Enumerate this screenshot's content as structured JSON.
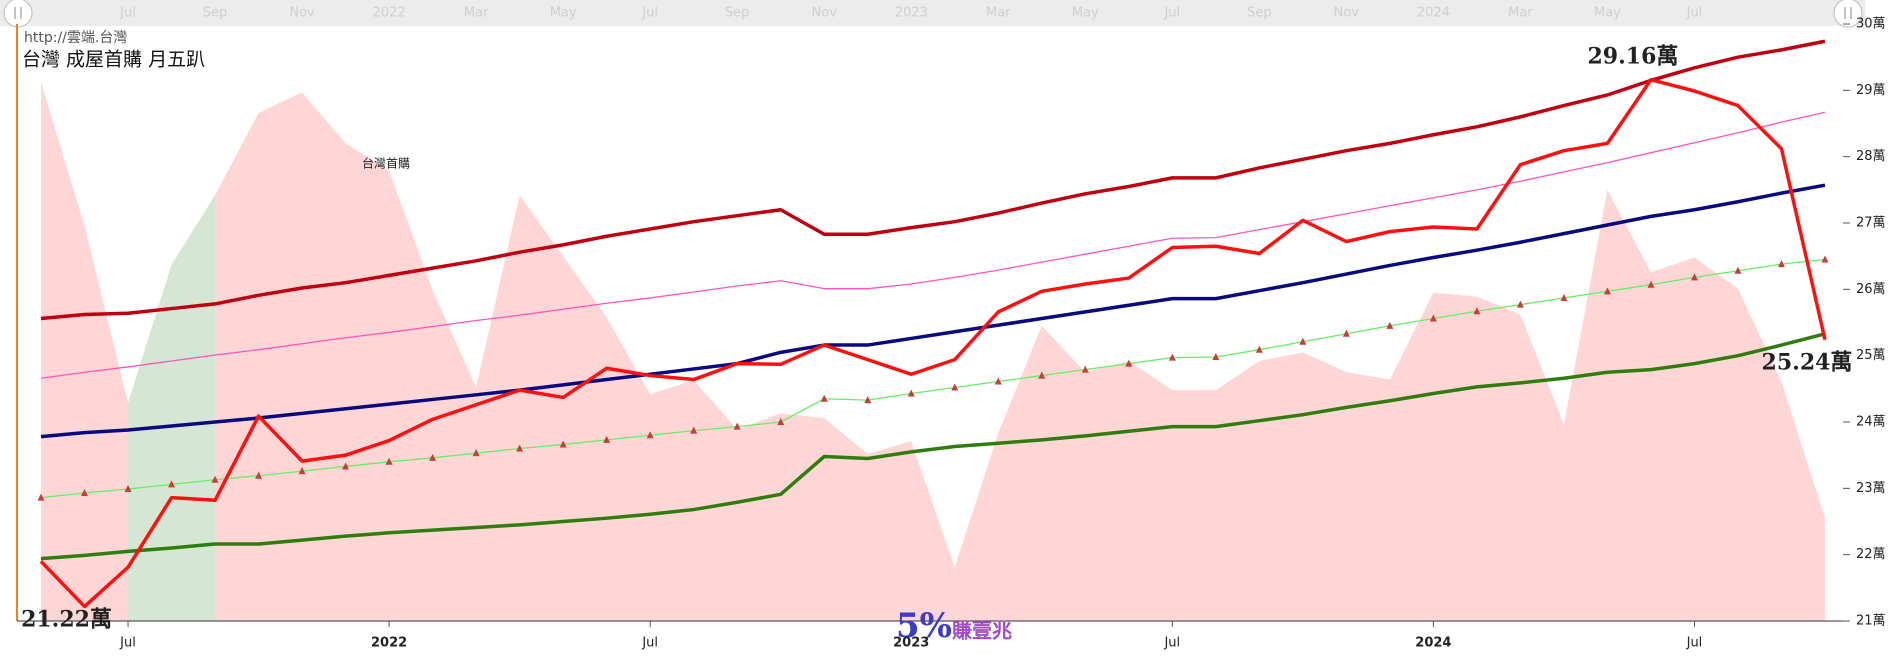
{
  "chart_data": {
    "type": "line",
    "url": "http://雲端.台灣",
    "title": "台灣 成屋首購 月五趴",
    "annotation": "台灣首購",
    "watermark": {
      "big": "5%",
      "small": "賺壹兆"
    },
    "x": [
      "2021-05",
      "2021-06",
      "2021-07",
      "2021-08",
      "2021-09",
      "2021-10",
      "2021-11",
      "2021-12",
      "2022-01",
      "2022-02",
      "2022-03",
      "2022-04",
      "2022-05",
      "2022-06",
      "2022-07",
      "2022-08",
      "2022-09",
      "2022-10",
      "2022-11",
      "2022-12",
      "2023-01",
      "2023-02",
      "2023-03",
      "2023-04",
      "2023-05",
      "2023-06",
      "2023-07",
      "2023-08",
      "2023-09",
      "2023-10",
      "2023-11",
      "2023-12",
      "2024-01",
      "2024-02",
      "2024-03",
      "2024-04",
      "2024-05",
      "2024-06",
      "2024-07",
      "2024-08",
      "2024-09",
      "2024-10"
    ],
    "ylim": [
      21,
      30
    ],
    "yticks": [
      {
        "value": 21,
        "label": "21萬"
      },
      {
        "value": 22,
        "label": "22萬"
      },
      {
        "value": 23,
        "label": "23萬"
      },
      {
        "value": 24,
        "label": "24萬"
      },
      {
        "value": 25,
        "label": "25萬"
      },
      {
        "value": 26,
        "label": "26萬"
      },
      {
        "value": 27,
        "label": "27萬"
      },
      {
        "value": 28,
        "label": "28萬"
      },
      {
        "value": 29,
        "label": "29萬"
      },
      {
        "value": 30,
        "label": "30萬"
      }
    ],
    "xticks": [
      {
        "value": "2021-07",
        "label": "Jul"
      },
      {
        "value": "2022-01",
        "label": "2022"
      },
      {
        "value": "2022-07",
        "label": "Jul"
      },
      {
        "value": "2023-01",
        "label": "2023"
      },
      {
        "value": "2023-07",
        "label": "Jul"
      },
      {
        "value": "2024-01",
        "label": "2024"
      },
      {
        "value": "2024-07",
        "label": "Jul"
      }
    ],
    "navigator_ticks": [
      {
        "value": "2021-07",
        "label": "Jul"
      },
      {
        "value": "2021-09",
        "label": "Sep"
      },
      {
        "value": "2021-11",
        "label": "Nov"
      },
      {
        "value": "2022-01",
        "label": "2022"
      },
      {
        "value": "2022-03",
        "label": "Mar"
      },
      {
        "value": "2022-05",
        "label": "May"
      },
      {
        "value": "2022-07",
        "label": "Jul"
      },
      {
        "value": "2022-09",
        "label": "Sep"
      },
      {
        "value": "2022-11",
        "label": "Nov"
      },
      {
        "value": "2023-01",
        "label": "2023"
      },
      {
        "value": "2023-03",
        "label": "Mar"
      },
      {
        "value": "2023-05",
        "label": "May"
      },
      {
        "value": "2023-07",
        "label": "Jul"
      },
      {
        "value": "2023-09",
        "label": "Sep"
      },
      {
        "value": "2023-11",
        "label": "Nov"
      },
      {
        "value": "2024-01",
        "label": "2024"
      },
      {
        "value": "2024-03",
        "label": "Mar"
      },
      {
        "value": "2024-05",
        "label": "May"
      },
      {
        "value": "2024-07",
        "label": "Jul"
      }
    ],
    "series": [
      {
        "kind": "area",
        "color": "#ffd6d6",
        "values": [
          29.12,
          26.96,
          24.29,
          null,
          27.42,
          28.66,
          28.97,
          28.2,
          27.79,
          25.99,
          24.52,
          27.42,
          26.5,
          25.58,
          24.42,
          24.63,
          23.89,
          24.13,
          24.06,
          23.52,
          23.71,
          21.81,
          23.83,
          25.45,
          24.75,
          24.92,
          24.48,
          24.48,
          24.92,
          25.05,
          24.75,
          24.64,
          25.95,
          25.89,
          25.62,
          23.96,
          27.5,
          26.26,
          26.48,
          26.01,
          24.61,
          22.55
        ]
      },
      {
        "kind": "area",
        "color": "#d6e6d4",
        "values": [
          null,
          null,
          24.29,
          26.37,
          27.42,
          null,
          null,
          null,
          null,
          null,
          null,
          null,
          null,
          null,
          null,
          null,
          null,
          null,
          null,
          null,
          null,
          null,
          null,
          null,
          null,
          null,
          null,
          null,
          null,
          null,
          null,
          null,
          null,
          null,
          null,
          null,
          null,
          null,
          null,
          null,
          null,
          null
        ]
      },
      {
        "kind": "line",
        "line": "thin",
        "color": "#ff55bb",
        "values": [
          24.66,
          24.75,
          24.83,
          24.92,
          25.01,
          25.09,
          25.18,
          25.27,
          25.35,
          25.44,
          25.53,
          25.61,
          25.7,
          25.79,
          25.87,
          25.96,
          26.05,
          26.13,
          26.01,
          26.01,
          26.08,
          26.18,
          26.29,
          26.41,
          26.53,
          26.65,
          26.77,
          26.78,
          26.9,
          27.02,
          27.14,
          27.26,
          27.38,
          27.5,
          27.63,
          27.77,
          27.91,
          28.06,
          28.21,
          28.36,
          28.52,
          28.67
        ]
      },
      {
        "kind": "line",
        "line": "thin",
        "color": "#66ee66",
        "marker": "triangle",
        "marker_color": "#c83c3c",
        "values": [
          22.86,
          22.93,
          22.99,
          23.06,
          23.13,
          23.19,
          23.26,
          23.33,
          23.4,
          23.46,
          23.53,
          23.6,
          23.66,
          23.73,
          23.8,
          23.87,
          23.93,
          24.0,
          24.35,
          24.33,
          24.43,
          24.52,
          24.61,
          24.7,
          24.79,
          24.88,
          24.97,
          24.98,
          25.09,
          25.21,
          25.33,
          25.45,
          25.56,
          25.67,
          25.77,
          25.87,
          25.97,
          26.07,
          26.18,
          26.28,
          26.38,
          26.45
        ]
      },
      {
        "kind": "line",
        "line": "thick",
        "color": "#2e7d0e",
        "values": [
          21.94,
          21.99,
          22.05,
          22.1,
          22.16,
          22.16,
          22.22,
          22.28,
          22.33,
          22.37,
          22.41,
          22.45,
          22.5,
          22.55,
          22.61,
          22.68,
          22.79,
          22.91,
          23.48,
          23.45,
          23.55,
          23.63,
          23.68,
          23.73,
          23.79,
          23.86,
          23.93,
          23.93,
          24.02,
          24.11,
          24.22,
          24.32,
          24.43,
          24.53,
          24.59,
          24.66,
          24.75,
          24.79,
          24.88,
          25.0,
          25.16,
          25.33
        ]
      },
      {
        "kind": "line",
        "line": "thick",
        "color": "#0a0a80",
        "values": [
          23.78,
          23.84,
          23.88,
          23.94,
          24.0,
          24.06,
          24.13,
          24.2,
          24.27,
          24.34,
          24.41,
          24.48,
          24.56,
          24.64,
          24.72,
          24.8,
          24.88,
          25.05,
          25.16,
          25.16,
          25.26,
          25.36,
          25.46,
          25.56,
          25.66,
          25.76,
          25.86,
          25.86,
          25.98,
          26.1,
          26.23,
          26.36,
          26.48,
          26.59,
          26.71,
          26.84,
          26.97,
          27.1,
          27.2,
          27.32,
          27.45,
          27.57
        ]
      },
      {
        "kind": "line",
        "line": "thick",
        "color": "#c00010",
        "values": [
          25.56,
          25.62,
          25.64,
          25.71,
          25.78,
          25.91,
          26.02,
          26.1,
          26.21,
          26.32,
          26.43,
          26.56,
          26.67,
          26.8,
          26.91,
          27.02,
          27.11,
          27.2,
          26.83,
          26.83,
          26.93,
          27.02,
          27.15,
          27.3,
          27.44,
          27.55,
          27.68,
          27.68,
          27.83,
          27.96,
          28.09,
          28.2,
          28.33,
          28.45,
          28.6,
          28.77,
          28.93,
          29.15,
          29.34,
          29.5,
          29.61,
          29.74
        ]
      },
      {
        "kind": "line",
        "line": "thick",
        "color": "#ff1010",
        "values": [
          21.9,
          21.22,
          21.81,
          22.86,
          22.82,
          24.09,
          23.41,
          23.5,
          23.72,
          24.04,
          24.26,
          24.48,
          24.37,
          24.81,
          24.7,
          24.64,
          24.88,
          24.87,
          25.16,
          24.94,
          24.72,
          24.94,
          25.66,
          25.97,
          26.08,
          26.17,
          26.63,
          26.65,
          26.54,
          27.04,
          26.72,
          26.87,
          26.94,
          26.91,
          27.88,
          28.09,
          28.2,
          29.16,
          28.99,
          28.77,
          28.12,
          25.24
        ],
        "value_labels": [
          null,
          "21.22萬",
          null,
          null,
          null,
          null,
          null,
          null,
          null,
          null,
          null,
          null,
          null,
          null,
          null,
          null,
          null,
          null,
          null,
          null,
          null,
          null,
          null,
          null,
          null,
          null,
          null,
          null,
          null,
          null,
          null,
          null,
          null,
          null,
          null,
          null,
          null,
          "29.16萬",
          null,
          null,
          null,
          "25.24萬"
        ]
      }
    ]
  }
}
